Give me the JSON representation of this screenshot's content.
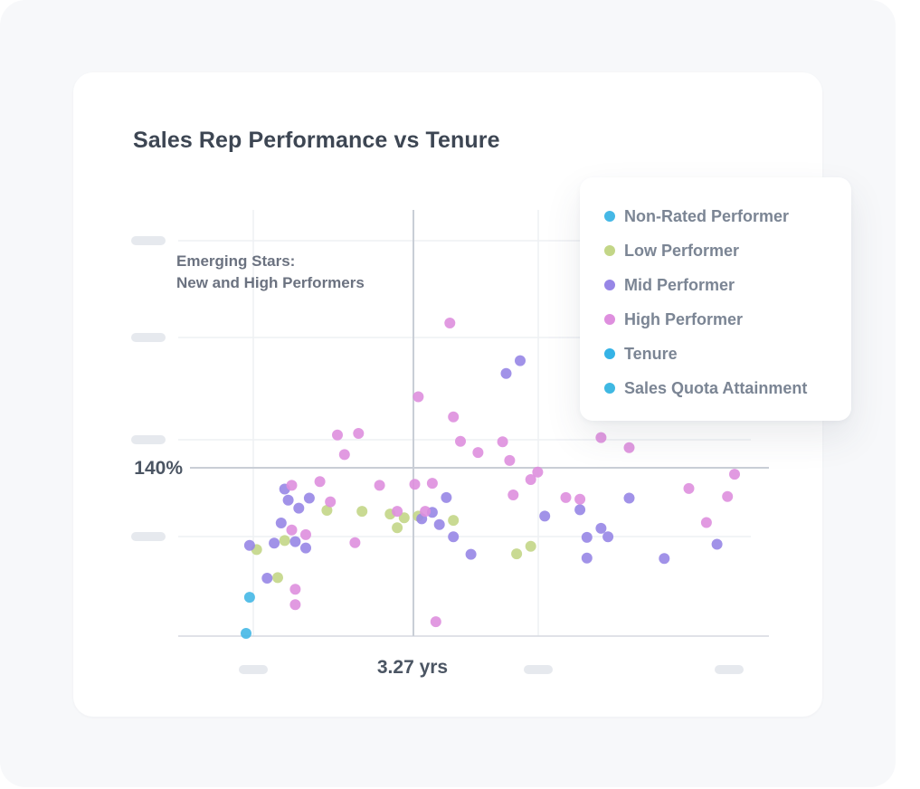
{
  "chart_data": {
    "type": "scatter",
    "title": "Sales Rep Performance vs Tenure",
    "xlabel": "",
    "ylabel": "",
    "x_reference": {
      "value": 3.27,
      "label": "3.27 yrs"
    },
    "y_reference": {
      "value": 140,
      "label": "140%"
    },
    "xlim": [
      -0.4,
      7.3
    ],
    "ylim": [
      100,
      172
    ],
    "quadrant_annotation": [
      "Emerging Stars:",
      "New and High Performers"
    ],
    "legend": [
      {
        "name": "Non-Rated Performer",
        "color": "#45b8e6"
      },
      {
        "name": "Low Performer",
        "color": "#c3d687"
      },
      {
        "name": "Mid Performer",
        "color": "#9786e6"
      },
      {
        "name": "High Performer",
        "color": "#de8fde"
      },
      {
        "name": "Tenure",
        "color": "#35b3e6"
      },
      {
        "name": "Sales Quota Attainment",
        "color": "#3fb8e2"
      }
    ],
    "series": [
      {
        "name": "Non-Rated Performer",
        "color": "#45b8e6",
        "points": [
          [
            0.5,
            119.6
          ],
          [
            0.45,
            112.8
          ]
        ]
      },
      {
        "name": "Low Performer",
        "color": "#c3d687",
        "points": [
          [
            0.6,
            128.6
          ],
          [
            0.9,
            123.3
          ],
          [
            1.0,
            130.3
          ],
          [
            1.6,
            136.0
          ],
          [
            2.1,
            135.8
          ],
          [
            2.5,
            135.3
          ],
          [
            2.6,
            132.7
          ],
          [
            2.7,
            134.6
          ],
          [
            2.9,
            134.9
          ],
          [
            3.4,
            134.1
          ],
          [
            4.3,
            127.8
          ],
          [
            4.5,
            129.2
          ]
        ]
      },
      {
        "name": "Mid Performer",
        "color": "#9786e6",
        "points": [
          [
            0.5,
            129.4
          ],
          [
            0.75,
            123.2
          ],
          [
            0.85,
            129.8
          ],
          [
            0.95,
            133.6
          ],
          [
            1.0,
            140.0
          ],
          [
            1.05,
            137.9
          ],
          [
            1.15,
            130.1
          ],
          [
            1.2,
            136.4
          ],
          [
            1.3,
            128.9
          ],
          [
            1.35,
            138.3
          ],
          [
            2.95,
            134.4
          ],
          [
            3.1,
            135.6
          ],
          [
            3.2,
            133.3
          ],
          [
            3.4,
            131.0
          ],
          [
            3.3,
            138.4
          ],
          [
            3.65,
            127.7
          ],
          [
            4.15,
            161.8
          ],
          [
            4.35,
            164.2
          ],
          [
            4.7,
            134.9
          ],
          [
            5.2,
            136.1
          ],
          [
            5.3,
            130.9
          ],
          [
            5.3,
            127.0
          ],
          [
            5.5,
            132.6
          ],
          [
            5.6,
            131.0
          ],
          [
            5.9,
            138.3
          ],
          [
            6.4,
            126.9
          ],
          [
            7.15,
            129.6
          ]
        ]
      },
      {
        "name": "High Performer",
        "color": "#de8fde",
        "points": [
          [
            1.1,
            140.7
          ],
          [
            1.1,
            132.3
          ],
          [
            1.15,
            121.1
          ],
          [
            1.15,
            118.2
          ],
          [
            1.3,
            131.4
          ],
          [
            1.5,
            141.4
          ],
          [
            1.65,
            137.6
          ],
          [
            1.75,
            150.2
          ],
          [
            1.85,
            146.5
          ],
          [
            2.0,
            129.9
          ],
          [
            2.05,
            150.5
          ],
          [
            2.35,
            140.7
          ],
          [
            2.6,
            135.8
          ],
          [
            2.85,
            140.9
          ],
          [
            2.9,
            157.4
          ],
          [
            3.0,
            135.8
          ],
          [
            3.1,
            141.1
          ],
          [
            3.15,
            115.0
          ],
          [
            3.35,
            171.3
          ],
          [
            3.4,
            153.6
          ],
          [
            3.5,
            149.0
          ],
          [
            3.75,
            146.9
          ],
          [
            4.1,
            148.9
          ],
          [
            4.2,
            145.4
          ],
          [
            4.25,
            138.9
          ],
          [
            4.5,
            141.8
          ],
          [
            4.6,
            143.2
          ],
          [
            5.0,
            138.4
          ],
          [
            5.2,
            138.1
          ],
          [
            5.5,
            149.7
          ],
          [
            5.9,
            147.8
          ],
          [
            6.75,
            140.1
          ],
          [
            7.0,
            133.7
          ],
          [
            7.3,
            138.6
          ],
          [
            7.4,
            142.8
          ]
        ]
      }
    ]
  }
}
